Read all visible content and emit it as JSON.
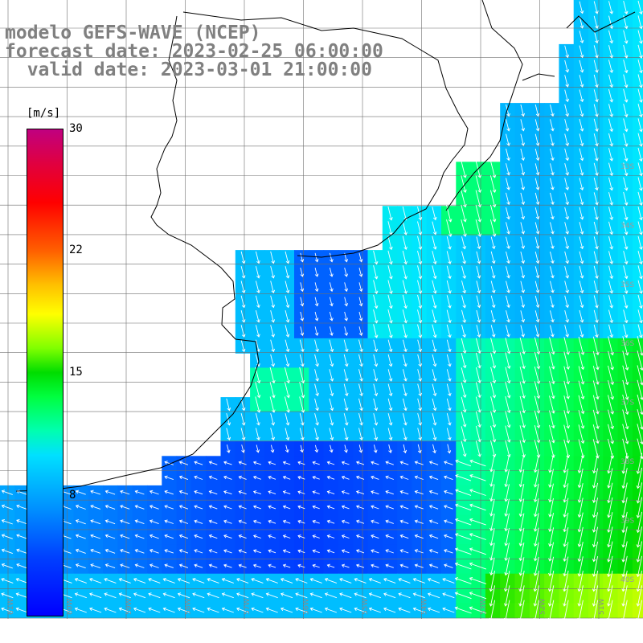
{
  "header": {
    "model": "modelo GEFS-WAVE (NCEP)",
    "forecast": "forecast date: 2023-02-25 06:00:00",
    "valid": "  valid date: 2023-03-01 21:00:00"
  },
  "legend": {
    "unit": "[m/s]",
    "ticks": [
      "30",
      "22",
      "15",
      "8"
    ],
    "range": [
      0,
      30
    ]
  },
  "axes": {
    "lon_labels": [
      "61W",
      "60W",
      "59W",
      "58W",
      "57W",
      "56W",
      "55W",
      "54W",
      "53W",
      "52W",
      "51W"
    ],
    "lat_labels": [
      "33S",
      "34S",
      "35S",
      "36S",
      "37S",
      "38S",
      "39S",
      "40S"
    ]
  },
  "colors": {
    "land": "#ffffff",
    "coast": "#000000",
    "grid": "#6e6e6e",
    "arrow": "#ffffff"
  }
}
